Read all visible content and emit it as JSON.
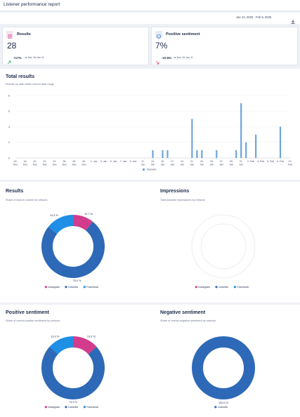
{
  "header": {
    "title": "Listener performance report",
    "date_range": "Jan 13, 2025 - Feb 9, 2025",
    "download_icon": "download-icon"
  },
  "kpis": [
    {
      "icon": "document-icon",
      "title": "Results",
      "value": "28",
      "change": "+17%",
      "compare": "vs Dec 16-Jan 11",
      "trend": "up",
      "trend_color": "#2aa55a"
    },
    {
      "icon": "smile-icon",
      "title": "Positive sentiment",
      "value": "7%",
      "change": "-10.5%",
      "compare": "vs Dec 16-Jan 11",
      "trend": "down",
      "trend_color": "#e0457a"
    }
  ],
  "total_results": {
    "title": "Total results",
    "subtitle": "Results by date within current date range",
    "legend": "Results"
  },
  "chart_data": {
    "type": "bar",
    "title": "Total results",
    "subtitle": "Results by date within current date range",
    "yticks": [
      0,
      2,
      4,
      6,
      8
    ],
    "ylim": [
      0,
      8
    ],
    "categories": [
      "16. Dec",
      "17. Dec",
      "18. Dec",
      "19. Dec",
      "20. Dec",
      "21. Dec",
      "22. Dec",
      "23. Dec",
      "24. Dec",
      "25. Dec",
      "26. Dec",
      "27. Dec",
      "28. Dec",
      "29. Dec",
      "30. Dec",
      "31. Dec",
      "1. Jan",
      "2. Jan",
      "3. Jan",
      "4. Jan",
      "5. Jan",
      "6. Jan",
      "7. Jan",
      "8. Jan",
      "9. Jan",
      "10. Jan",
      "11. Jan",
      "12. Jan",
      "13. Jan",
      "14. Jan",
      "15. Jan",
      "16. Jan",
      "17. Jan",
      "18. Jan",
      "19. Jan",
      "20. Jan",
      "21. Jan",
      "22. Jan",
      "23. Jan",
      "24. Jan",
      "25. Jan",
      "26. Jan",
      "27. Jan",
      "28. Jan",
      "29. Jan",
      "30. Jan",
      "31. Jan",
      "1. Feb",
      "2. Feb",
      "3. Feb",
      "4. Feb",
      "5. Feb",
      "6. Feb",
      "7. Feb",
      "8. Feb",
      "9. Feb",
      "10. Feb"
    ],
    "tick_labels": [
      "16.\nDec",
      "18.\nDec",
      "20.\nDec",
      "22.\nDec",
      "24.\nDec",
      "26.\nDec",
      "28.\nDec",
      "30.\nDec",
      "1. Jan",
      "3. Jan",
      "5. Jan",
      "7. Jan",
      "9. Jan",
      "11.\nJan",
      "13.\nJan",
      "15.\nJan",
      "17.\nJan",
      "19.\nJan",
      "21.\nJan",
      "23.\nJan",
      "25.\nJan",
      "27.\nJan",
      "29.\nJan",
      "31.\nJan",
      "2. Feb",
      "4. Feb",
      "6. Feb",
      "8. Feb",
      "10.\nFeb"
    ],
    "series": [
      {
        "name": "Results",
        "color": "#6fa4dc",
        "values": [
          0,
          0,
          0,
          0,
          0,
          0,
          0,
          0,
          0,
          0,
          0,
          0,
          0,
          0,
          0,
          0,
          0,
          0,
          0,
          0,
          0,
          0,
          0,
          0,
          0,
          0,
          0,
          0,
          1,
          0,
          1,
          1,
          0,
          0,
          0,
          0,
          5,
          1,
          1,
          0,
          0,
          1,
          0,
          0,
          0,
          1,
          7,
          2,
          0,
          3,
          0,
          0,
          0,
          0,
          4,
          0,
          0
        ]
      }
    ]
  },
  "donuts": [
    {
      "title": "Results",
      "subtitle": "Share of search volume by network",
      "slices": [
        {
          "name": "Instagram",
          "value": 10.7,
          "color": "#d23c8c"
        },
        {
          "name": "LinkedIn",
          "value": 75.0,
          "color": "#2d69b7"
        },
        {
          "name": "Facebook",
          "value": 14.3,
          "color": "#1f8ee5"
        }
      ],
      "labels": [
        "10.7 %",
        "75.0 %",
        "14.3 %"
      ],
      "empty": false
    },
    {
      "title": "Impressions",
      "subtitle": "Total possible impressions by network",
      "slices": [
        {
          "name": "Instagram",
          "value": 0,
          "color": "#d23c8c"
        },
        {
          "name": "LinkedIn",
          "value": 0,
          "color": "#2d69b7"
        },
        {
          "name": "Facebook",
          "value": 0,
          "color": "#1f8ee5"
        }
      ],
      "labels": [],
      "empty": true
    },
    {
      "title": "Positive sentiment",
      "subtitle": "Share of overall positive sentiment by network",
      "slices": [
        {
          "name": "Instagram",
          "value": 13.3,
          "color": "#d23c8c"
        },
        {
          "name": "LinkedIn",
          "value": 73.3,
          "color": "#2d69b7"
        },
        {
          "name": "Facebook",
          "value": 13.3,
          "color": "#1f8ee5"
        }
      ],
      "labels": [
        "13.3 %",
        "73.3 %",
        "13.3 %"
      ],
      "empty": false
    },
    {
      "title": "Negative sentiment",
      "subtitle": "Share of overall negative sentiment by network",
      "slices": [
        {
          "name": "LinkedIn",
          "value": 100.0,
          "color": "#2d69b7"
        }
      ],
      "legend": [
        {
          "name": "LinkedIn",
          "color": "#2d69b7"
        }
      ],
      "labels": [
        "100.0 %"
      ],
      "empty": false
    }
  ]
}
